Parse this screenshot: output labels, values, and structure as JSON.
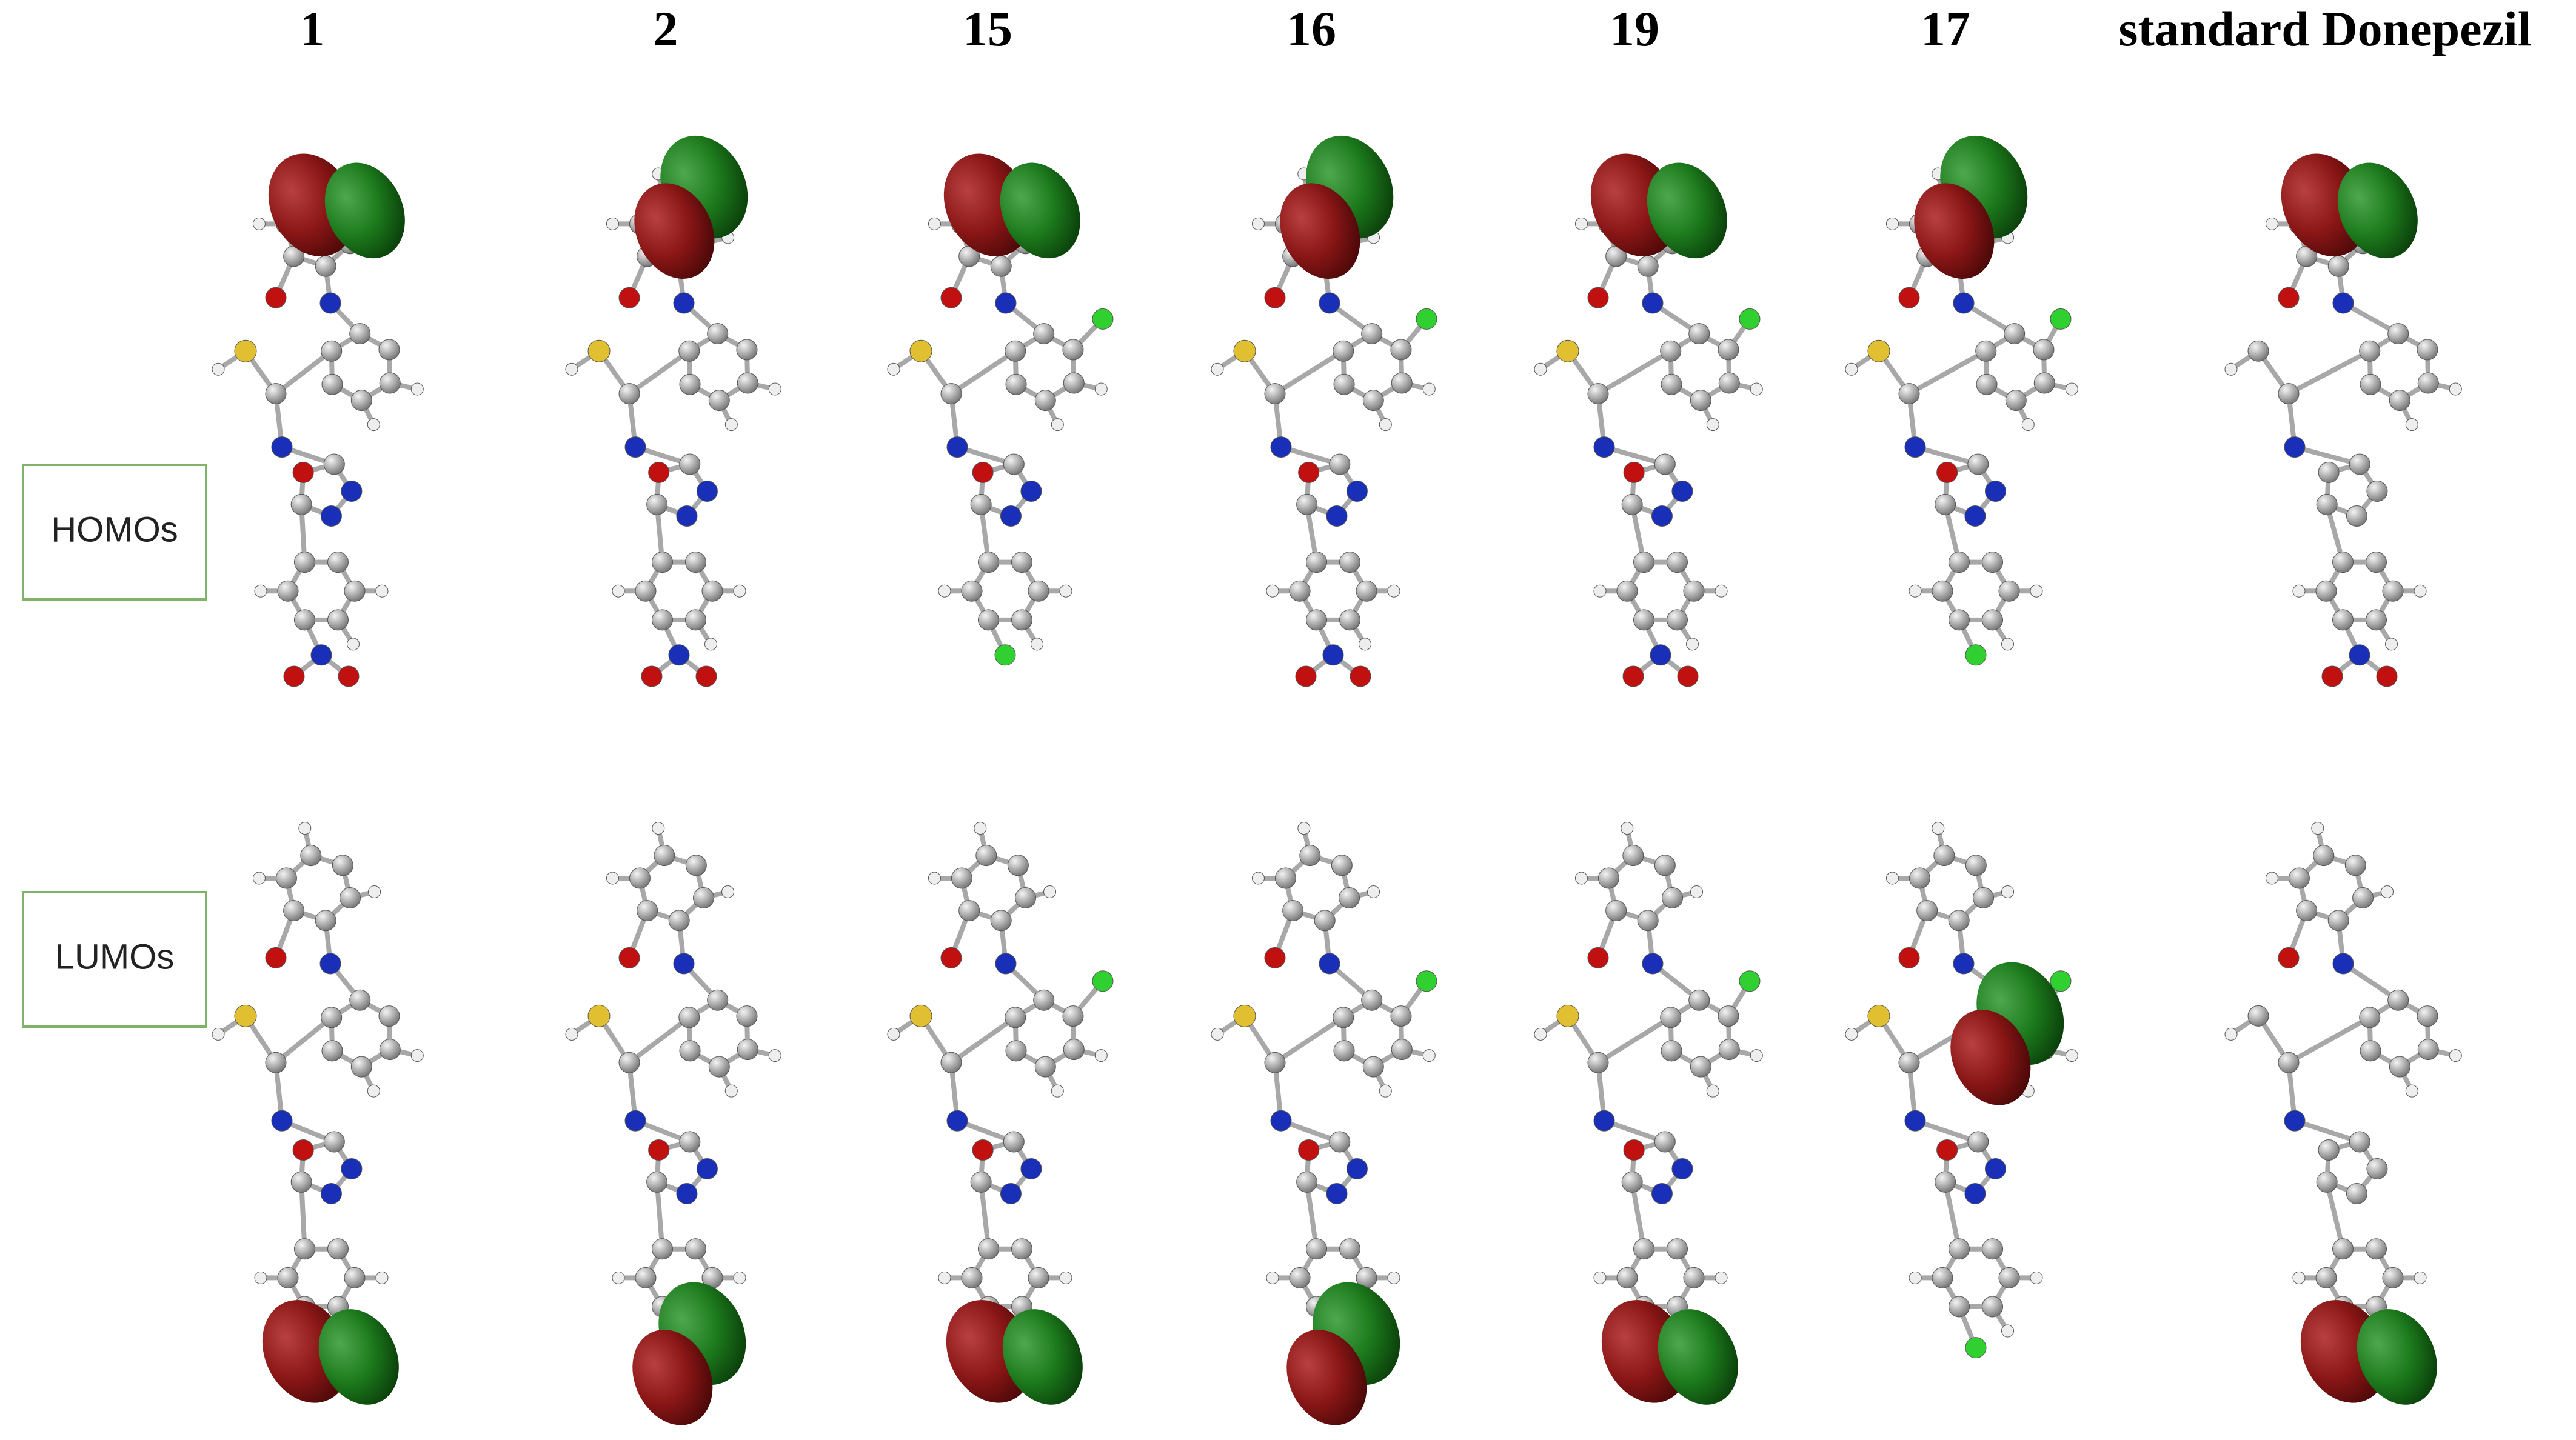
{
  "columns": [
    "1",
    "2",
    "15",
    "16",
    "19",
    "17",
    "standard Donepezil"
  ],
  "rows": [
    "HOMOs",
    "LUMOs"
  ]
}
